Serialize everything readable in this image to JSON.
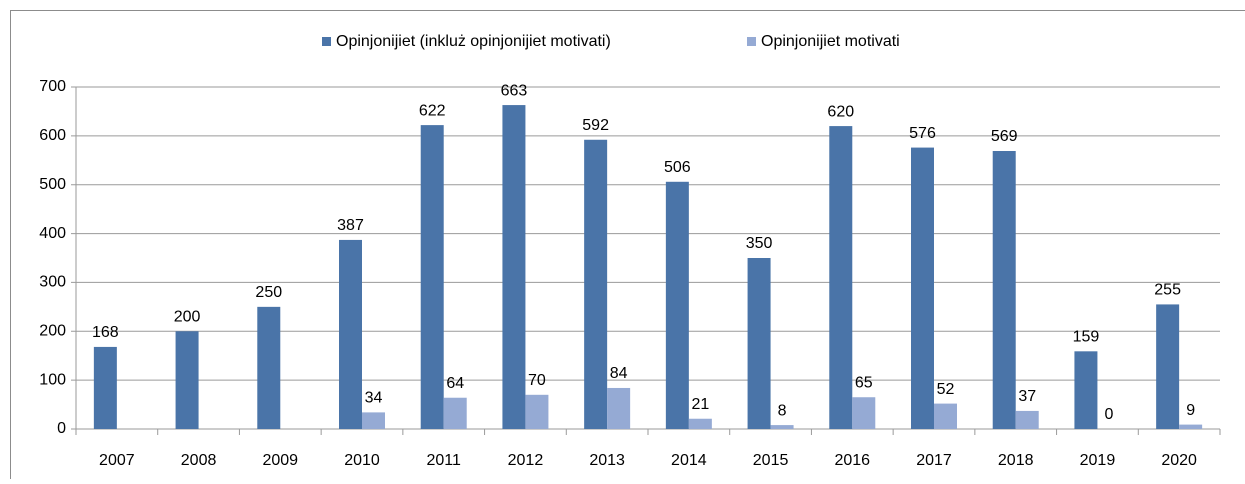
{
  "chart_data": {
    "type": "bar",
    "categories": [
      "2007",
      "2008",
      "2009",
      "2010",
      "2011",
      "2012",
      "2013",
      "2014",
      "2015",
      "2016",
      "2017",
      "2018",
      "2019",
      "2020"
    ],
    "series": [
      {
        "name": "Opinjonijiet (inkluż opinjonijiet motivati)",
        "color": "#4a74a8",
        "values": [
          168,
          200,
          250,
          387,
          622,
          663,
          592,
          506,
          350,
          620,
          576,
          569,
          159,
          255
        ]
      },
      {
        "name": "Opinjonijiet motivati",
        "color": "#95aad4",
        "values": [
          null,
          null,
          null,
          34,
          64,
          70,
          84,
          21,
          8,
          65,
          52,
          37,
          0,
          9
        ]
      }
    ],
    "ylim": [
      0,
      700
    ],
    "yticks": [
      0,
      100,
      200,
      300,
      400,
      500,
      600,
      700
    ],
    "grid": true,
    "legend": "top"
  }
}
